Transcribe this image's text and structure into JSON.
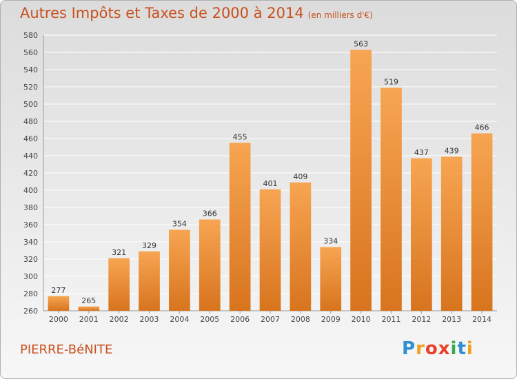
{
  "title": "Autres Impôts et Taxes de 2000 à 2014",
  "subtitle": "(en milliers d'€)",
  "commune": "PIERRE-BéNITE",
  "logo": {
    "text": "Proxiti",
    "letters": [
      {
        "ch": "P",
        "color": "#2f8fd0"
      },
      {
        "ch": "r",
        "color": "#f0a020"
      },
      {
        "ch": "o",
        "color": "#e8402a"
      },
      {
        "ch": "x",
        "color": "#e8402a"
      },
      {
        "ch": "i",
        "color": "#3aa84a"
      },
      {
        "ch": "t",
        "color": "#2f8fd0"
      },
      {
        "ch": "i",
        "color": "#f0a020"
      }
    ]
  },
  "colors": {
    "bar_light": "#f7a552",
    "bar_dark": "#d8741e",
    "title": "#c8501e"
  },
  "chart_data": {
    "type": "bar",
    "categories": [
      "2000",
      "2001",
      "2002",
      "2003",
      "2004",
      "2005",
      "2006",
      "2007",
      "2008",
      "2009",
      "2010",
      "2011",
      "2012",
      "2013",
      "2014"
    ],
    "values": [
      277,
      265,
      321,
      329,
      354,
      366,
      455,
      401,
      409,
      334,
      563,
      519,
      437,
      439,
      466
    ],
    "ylim": [
      260,
      580
    ],
    "yticks": [
      260,
      280,
      300,
      320,
      340,
      360,
      380,
      400,
      420,
      440,
      460,
      480,
      500,
      520,
      540,
      560,
      580
    ],
    "grid": true,
    "data_labels": true
  }
}
